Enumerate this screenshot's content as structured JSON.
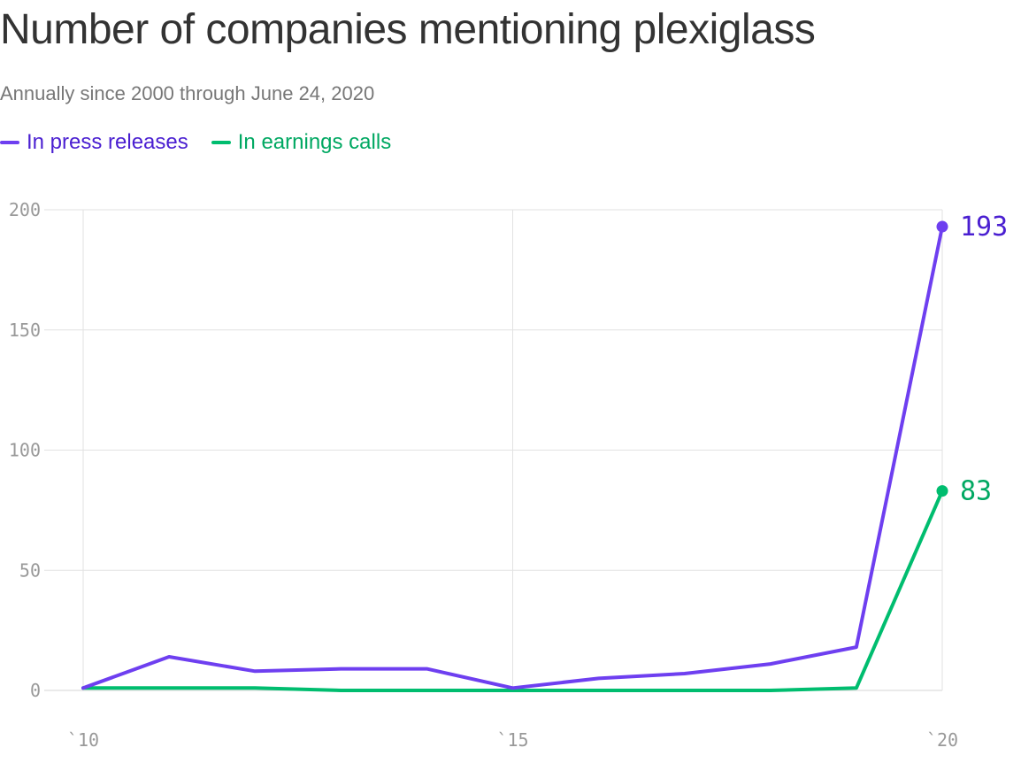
{
  "header": {
    "title": "Number of companies mentioning plexiglass",
    "subtitle": "Annually since 2000 through June 24, 2020"
  },
  "chart_data": {
    "type": "line",
    "title": "Number of companies mentioning plexiglass",
    "subtitle": "Annually since 2000 through June 24, 2020",
    "x": [
      2010,
      2011,
      2012,
      2013,
      2014,
      2015,
      2016,
      2017,
      2018,
      2019,
      2020
    ],
    "x_ticks": [
      2010,
      2015,
      2020
    ],
    "x_tick_labels": [
      "`10",
      "`15",
      "`20"
    ],
    "xlim": [
      2010,
      2020
    ],
    "y_ticks": [
      0,
      50,
      100,
      150,
      200
    ],
    "y_tick_labels": [
      "0",
      "50",
      "100",
      "150",
      "200"
    ],
    "ylim": [
      0,
      200
    ],
    "grid": true,
    "legend_position": "top-left",
    "series": [
      {
        "name": "In press releases",
        "color": "#6e3ff0",
        "label_color": "#4a1fd1",
        "values": [
          1,
          14,
          8,
          9,
          9,
          1,
          5,
          7,
          11,
          18,
          193
        ],
        "end_label": "193"
      },
      {
        "name": "In earnings calls",
        "color": "#00bd6f",
        "label_color": "#00a862",
        "values": [
          1,
          1,
          1,
          0,
          0,
          0,
          0,
          0,
          0,
          1,
          83
        ],
        "end_label": "83"
      }
    ]
  }
}
